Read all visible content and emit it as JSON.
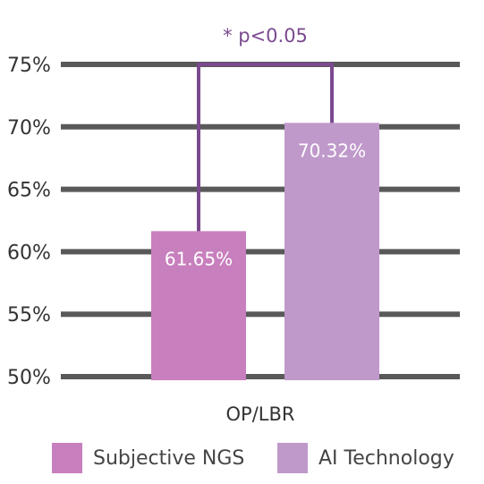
{
  "chart_data": {
    "type": "bar",
    "title": "",
    "xlabel": "",
    "ylabel": "",
    "categories": [
      "OP/LBR"
    ],
    "series": [
      {
        "name": "Subjective NGS",
        "values": [
          61.65
        ],
        "label": "61.65%",
        "color": "#c87fbd"
      },
      {
        "name": "AI Technology",
        "values": [
          70.32
        ],
        "label": "70.32%",
        "color": "#c099cb"
      }
    ],
    "ylim": [
      50,
      75
    ],
    "yticks": [
      50,
      55,
      60,
      65,
      70,
      75
    ],
    "ytick_labels": [
      "50%",
      "55%",
      "60%",
      "65%",
      "70%",
      "75%"
    ],
    "grid": true,
    "grid_color": "#595959",
    "annotation": {
      "text": "* p<0.05",
      "color": "#7b4a8f"
    },
    "legend": "bottom"
  }
}
